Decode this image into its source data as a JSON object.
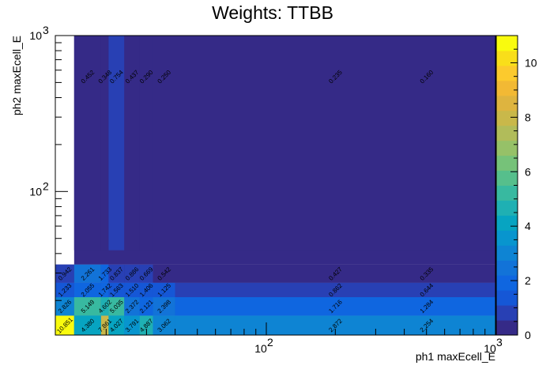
{
  "chart_data": {
    "type": "heatmap",
    "title": "Weights: TTBB",
    "xlabel": "ph1 maxEcell_E",
    "ylabel": "ph2 maxEcell_E",
    "x_scale": "log",
    "y_scale": "log",
    "xlim": [
      12,
      1000
    ],
    "ylim": [
      12,
      1000
    ],
    "x_edges": [
      12,
      14.5,
      19,
      20.5,
      24,
      28,
      32,
      40,
      1000
    ],
    "y_edges": [
      12,
      16,
      21,
      26,
      34,
      42,
      1000
    ],
    "x_ticks": [
      {
        "value": 100,
        "label": "10",
        "exp": "2"
      },
      {
        "value": 1000,
        "label": "10",
        "exp": "3"
      }
    ],
    "y_ticks": [
      {
        "value": 100,
        "label": "10",
        "exp": "2"
      },
      {
        "value": 1000,
        "label": "10",
        "exp": "3"
      }
    ],
    "zlim": [
      0,
      11
    ],
    "z_ticks": [
      "0",
      "2",
      "4",
      "6",
      "8",
      "10"
    ],
    "colorscale": [
      "#352a87",
      "#2840b4",
      "#1557d6",
      "#0f66e0",
      "#1273d8",
      "#0e84d3",
      "#0895ce",
      "#07a4c1",
      "#1fb0b3",
      "#38b9a0",
      "#56bf8c",
      "#76c279",
      "#96c168",
      "#b1bc5a",
      "#c9b84a",
      "#deb43f",
      "#f2b934",
      "#fcca2d",
      "#f9de1a",
      "#f9fb0e"
    ],
    "cells": [
      {
        "ix": 0,
        "iy": 0,
        "value": 10.851,
        "label": "10.851"
      },
      {
        "ix": 1,
        "iy": 0,
        "value": 4.38,
        "label": "4.380"
      },
      {
        "ix": 2,
        "iy": 0,
        "value": 7.861,
        "label": "7.861"
      },
      {
        "ix": 3,
        "iy": 0,
        "value": 4.027,
        "label": "4.027"
      },
      {
        "ix": 4,
        "iy": 0,
        "value": 3.791,
        "label": "3.791"
      },
      {
        "ix": 5,
        "iy": 0,
        "value": 4.887,
        "label": "4.887"
      },
      {
        "ix": 6,
        "iy": 0,
        "value": 3.062,
        "label": "3.062"
      },
      {
        "ix": 7,
        "iy": 0,
        "value": 2.872,
        "label": "2.872"
      },
      {
        "ix": 0,
        "iy": 1,
        "value": 2.826,
        "label": "2.826"
      },
      {
        "ix": 1,
        "iy": 1,
        "value": 5.149,
        "label": "5.149"
      },
      {
        "ix": 2,
        "iy": 1,
        "value": 4.602,
        "label": "4.602"
      },
      {
        "ix": 3,
        "iy": 1,
        "value": 5.035,
        "label": "5.035"
      },
      {
        "ix": 4,
        "iy": 1,
        "value": 2.372,
        "label": "2.372"
      },
      {
        "ix": 5,
        "iy": 1,
        "value": 2.121,
        "label": "2.121"
      },
      {
        "ix": 6,
        "iy": 1,
        "value": 2.398,
        "label": "2.398"
      },
      {
        "ix": 7,
        "iy": 1,
        "value": 1.716,
        "label": "1.716"
      },
      {
        "ix": 0,
        "iy": 2,
        "value": 1.233,
        "label": "1.233"
      },
      {
        "ix": 1,
        "iy": 2,
        "value": 2.055,
        "label": "2.055"
      },
      {
        "ix": 2,
        "iy": 2,
        "value": 1.742,
        "label": "1.742"
      },
      {
        "ix": 3,
        "iy": 2,
        "value": 1.563,
        "label": "1.563"
      },
      {
        "ix": 4,
        "iy": 2,
        "value": 1.51,
        "label": "1.510"
      },
      {
        "ix": 5,
        "iy": 2,
        "value": 1.406,
        "label": "1.406"
      },
      {
        "ix": 6,
        "iy": 2,
        "value": 1.125,
        "label": "1.125"
      },
      {
        "ix": 7,
        "iy": 2,
        "value": 0.862,
        "label": "0.862"
      },
      {
        "ix": 0,
        "iy": 3,
        "value": 0.942,
        "label": "0.942"
      },
      {
        "ix": 1,
        "iy": 3,
        "value": 2.261,
        "label": "2.261"
      },
      {
        "ix": 2,
        "iy": 3,
        "value": 1.733,
        "label": "1.733"
      },
      {
        "ix": 3,
        "iy": 3,
        "value": 0.837,
        "label": "0.837"
      },
      {
        "ix": 4,
        "iy": 3,
        "value": 0.886,
        "label": "0.886"
      },
      {
        "ix": 5,
        "iy": 3,
        "value": 0.669,
        "label": "0.669"
      },
      {
        "ix": 6,
        "iy": 3,
        "value": 0.542,
        "label": "0.542"
      },
      {
        "ix": 7,
        "iy": 3,
        "value": 0.427,
        "label": "0.427"
      },
      {
        "ix": 1,
        "iy": 5,
        "value": 0.452,
        "label": "0.452"
      },
      {
        "ix": 2,
        "iy": 5,
        "value": 0.348,
        "label": "0.348"
      },
      {
        "ix": 3,
        "iy": 5,
        "value": 0.754,
        "label": "0.754"
      },
      {
        "ix": 4,
        "iy": 5,
        "value": 0.437,
        "label": "0.437"
      },
      {
        "ix": 5,
        "iy": 5,
        "value": 0.29,
        "label": "0.290"
      },
      {
        "ix": 6,
        "iy": 5,
        "value": 0.25,
        "label": "0.250"
      },
      {
        "ix": 7,
        "iy": 5,
        "value": 0.235,
        "label": "0.235"
      }
    ],
    "edge_labels": [
      {
        "x": 500,
        "iy": 0,
        "label": "2.254"
      },
      {
        "x": 500,
        "iy": 1,
        "label": "1.284"
      },
      {
        "x": 500,
        "iy": 2,
        "label": "0.644"
      },
      {
        "x": 500,
        "iy": 3,
        "label": "0.335"
      },
      {
        "x": 500,
        "iy": 5,
        "label": "0.160"
      }
    ],
    "region_fills": [
      {
        "x0": 12,
        "x1": 1000,
        "iy0": 0,
        "iy1": 1,
        "value": 2.254
      },
      {
        "x0": 12,
        "x1": 1000,
        "iy0": 1,
        "iy1": 2,
        "value": 1.284
      },
      {
        "x0": 12,
        "x1": 1000,
        "iy0": 2,
        "iy1": 3,
        "value": 0.644
      },
      {
        "x0": 12,
        "x1": 1000,
        "iy0": 3,
        "iy1": 4,
        "value": 0.335
      },
      {
        "x0": 14.5,
        "x1": 1000,
        "iy0": 4,
        "iy1": 6,
        "value": 0.16
      }
    ],
    "grid": false,
    "legend": "colorbar-right"
  }
}
